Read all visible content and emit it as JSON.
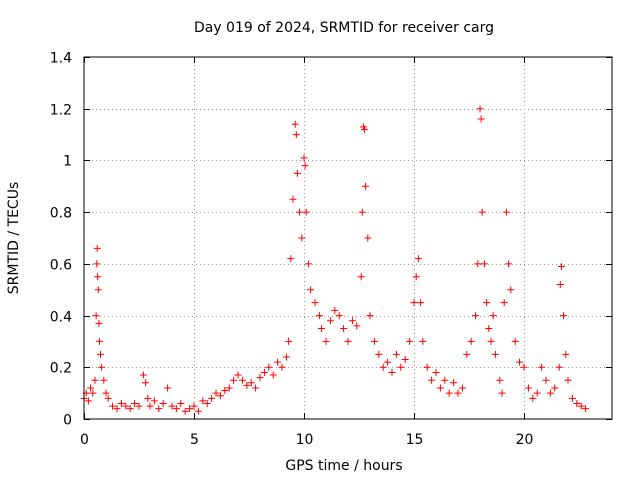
{
  "chart_data": {
    "type": "scatter",
    "title": "Day 019 of 2024, SRMTID for receiver carg",
    "xlabel": "GPS time / hours",
    "ylabel": "SRMTID / TECUs",
    "xlim": [
      0,
      24
    ],
    "ylim": [
      0,
      1.4
    ],
    "xticks": [
      0,
      5,
      10,
      15,
      20
    ],
    "xtick_labels": [
      "0",
      "5",
      "10",
      "15",
      "20"
    ],
    "yticks": [
      0,
      0.2,
      0.4,
      0.6,
      0.8,
      1,
      1.2,
      1.4
    ],
    "ytick_labels": [
      "0",
      "0.2",
      "0.4",
      "0.6",
      "0.8",
      "1",
      "1.2",
      "1.4"
    ],
    "grid": true,
    "marker": "+",
    "color": "#ff0000",
    "series": [
      {
        "name": "SRMTID",
        "points": [
          [
            0.0,
            0.08
          ],
          [
            0.1,
            0.1
          ],
          [
            0.2,
            0.07
          ],
          [
            0.3,
            0.12
          ],
          [
            0.4,
            0.1
          ],
          [
            0.5,
            0.15
          ],
          [
            0.55,
            0.4
          ],
          [
            0.58,
            0.6
          ],
          [
            0.6,
            0.66
          ],
          [
            0.62,
            0.55
          ],
          [
            0.65,
            0.5
          ],
          [
            0.68,
            0.37
          ],
          [
            0.7,
            0.3
          ],
          [
            0.75,
            0.25
          ],
          [
            0.8,
            0.2
          ],
          [
            0.9,
            0.15
          ],
          [
            1.0,
            0.1
          ],
          [
            1.1,
            0.08
          ],
          [
            1.3,
            0.05
          ],
          [
            1.5,
            0.04
          ],
          [
            1.7,
            0.06
          ],
          [
            1.9,
            0.05
          ],
          [
            2.1,
            0.04
          ],
          [
            2.3,
            0.06
          ],
          [
            2.5,
            0.05
          ],
          [
            2.7,
            0.17
          ],
          [
            2.8,
            0.14
          ],
          [
            2.9,
            0.08
          ],
          [
            3.0,
            0.05
          ],
          [
            3.2,
            0.07
          ],
          [
            3.4,
            0.04
          ],
          [
            3.6,
            0.06
          ],
          [
            3.8,
            0.12
          ],
          [
            4.0,
            0.05
          ],
          [
            4.2,
            0.04
          ],
          [
            4.4,
            0.06
          ],
          [
            4.6,
            0.03
          ],
          [
            4.8,
            0.04
          ],
          [
            5.0,
            0.05
          ],
          [
            5.2,
            0.03
          ],
          [
            5.4,
            0.07
          ],
          [
            5.6,
            0.06
          ],
          [
            5.8,
            0.08
          ],
          [
            6.0,
            0.1
          ],
          [
            6.2,
            0.09
          ],
          [
            6.4,
            0.11
          ],
          [
            6.6,
            0.12
          ],
          [
            6.8,
            0.15
          ],
          [
            7.0,
            0.17
          ],
          [
            7.2,
            0.15
          ],
          [
            7.4,
            0.13
          ],
          [
            7.6,
            0.14
          ],
          [
            7.8,
            0.12
          ],
          [
            8.0,
            0.16
          ],
          [
            8.2,
            0.18
          ],
          [
            8.4,
            0.2
          ],
          [
            8.6,
            0.17
          ],
          [
            8.8,
            0.22
          ],
          [
            9.0,
            0.2
          ],
          [
            9.2,
            0.24
          ],
          [
            9.3,
            0.3
          ],
          [
            9.4,
            0.62
          ],
          [
            9.5,
            0.85
          ],
          [
            9.6,
            1.14
          ],
          [
            9.65,
            1.1
          ],
          [
            9.7,
            0.95
          ],
          [
            9.8,
            0.8
          ],
          [
            9.9,
            0.7
          ],
          [
            10.0,
            1.01
          ],
          [
            10.05,
            0.98
          ],
          [
            10.1,
            0.8
          ],
          [
            10.2,
            0.6
          ],
          [
            10.3,
            0.5
          ],
          [
            10.5,
            0.45
          ],
          [
            10.7,
            0.4
          ],
          [
            10.8,
            0.35
          ],
          [
            11.0,
            0.3
          ],
          [
            11.2,
            0.38
          ],
          [
            11.4,
            0.42
          ],
          [
            11.6,
            0.4
          ],
          [
            11.8,
            0.35
          ],
          [
            12.0,
            0.3
          ],
          [
            12.2,
            0.38
          ],
          [
            12.4,
            0.36
          ],
          [
            12.6,
            0.55
          ],
          [
            12.65,
            0.8
          ],
          [
            12.7,
            1.13
          ],
          [
            12.75,
            1.12
          ],
          [
            12.8,
            0.9
          ],
          [
            12.9,
            0.7
          ],
          [
            13.0,
            0.4
          ],
          [
            13.2,
            0.3
          ],
          [
            13.4,
            0.25
          ],
          [
            13.6,
            0.2
          ],
          [
            13.8,
            0.22
          ],
          [
            14.0,
            0.18
          ],
          [
            14.2,
            0.25
          ],
          [
            14.4,
            0.2
          ],
          [
            14.6,
            0.23
          ],
          [
            14.8,
            0.3
          ],
          [
            15.0,
            0.45
          ],
          [
            15.1,
            0.55
          ],
          [
            15.2,
            0.62
          ],
          [
            15.3,
            0.45
          ],
          [
            15.4,
            0.3
          ],
          [
            15.6,
            0.2
          ],
          [
            15.8,
            0.15
          ],
          [
            16.0,
            0.18
          ],
          [
            16.2,
            0.12
          ],
          [
            16.4,
            0.15
          ],
          [
            16.6,
            0.1
          ],
          [
            16.8,
            0.14
          ],
          [
            17.0,
            0.1
          ],
          [
            17.2,
            0.12
          ],
          [
            17.4,
            0.25
          ],
          [
            17.6,
            0.3
          ],
          [
            17.8,
            0.4
          ],
          [
            17.9,
            0.6
          ],
          [
            18.0,
            1.2
          ],
          [
            18.05,
            1.16
          ],
          [
            18.1,
            0.8
          ],
          [
            18.2,
            0.6
          ],
          [
            18.3,
            0.45
          ],
          [
            18.4,
            0.35
          ],
          [
            18.5,
            0.3
          ],
          [
            18.6,
            0.4
          ],
          [
            18.7,
            0.25
          ],
          [
            18.9,
            0.15
          ],
          [
            19.0,
            0.1
          ],
          [
            19.1,
            0.45
          ],
          [
            19.2,
            0.8
          ],
          [
            19.3,
            0.6
          ],
          [
            19.4,
            0.5
          ],
          [
            19.6,
            0.3
          ],
          [
            19.8,
            0.22
          ],
          [
            20.0,
            0.2
          ],
          [
            20.2,
            0.12
          ],
          [
            20.4,
            0.08
          ],
          [
            20.6,
            0.1
          ],
          [
            20.8,
            0.2
          ],
          [
            21.0,
            0.15
          ],
          [
            21.2,
            0.1
          ],
          [
            21.4,
            0.12
          ],
          [
            21.6,
            0.2
          ],
          [
            21.65,
            0.52
          ],
          [
            21.7,
            0.59
          ],
          [
            21.8,
            0.4
          ],
          [
            21.9,
            0.25
          ],
          [
            22.0,
            0.15
          ],
          [
            22.2,
            0.08
          ],
          [
            22.4,
            0.06
          ],
          [
            22.6,
            0.05
          ],
          [
            22.8,
            0.04
          ]
        ]
      }
    ]
  }
}
